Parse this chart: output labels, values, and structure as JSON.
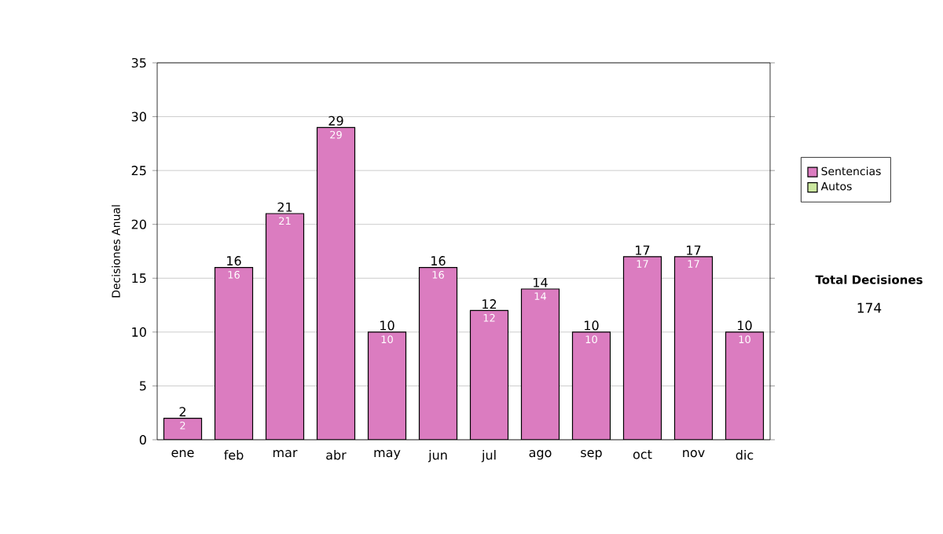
{
  "chart_data": {
    "type": "bar",
    "stacked": true,
    "categories": [
      "ene",
      "feb",
      "mar",
      "abr",
      "may",
      "jun",
      "jul",
      "ago",
      "sep",
      "oct",
      "nov",
      "dic"
    ],
    "series": [
      {
        "name": "Sentencias",
        "color": "#db7cc0",
        "values": [
          2,
          16,
          21,
          29,
          10,
          16,
          12,
          14,
          10,
          17,
          17,
          10
        ],
        "value_labels": [
          "2",
          "16",
          "21",
          "29",
          "10",
          "16",
          "12",
          "14",
          "10",
          "17",
          "17",
          "10"
        ]
      },
      {
        "name": "Autos",
        "color": "#cce8a0",
        "values": [
          0,
          0,
          0,
          0,
          0,
          0,
          0,
          0,
          0,
          0,
          0,
          0
        ]
      }
    ],
    "ylabel": "Decisiones Anual",
    "ylim": [
      0,
      35
    ],
    "yticks": [
      0,
      5,
      10,
      15,
      20,
      25,
      30,
      35
    ],
    "totals": [
      "2",
      "16",
      "21",
      "29",
      "10",
      "16",
      "12",
      "14",
      "10",
      "17",
      "17",
      "10"
    ],
    "grid": "y",
    "legend": "right",
    "annotations": [
      "Total Decisiones",
      "174"
    ]
  }
}
